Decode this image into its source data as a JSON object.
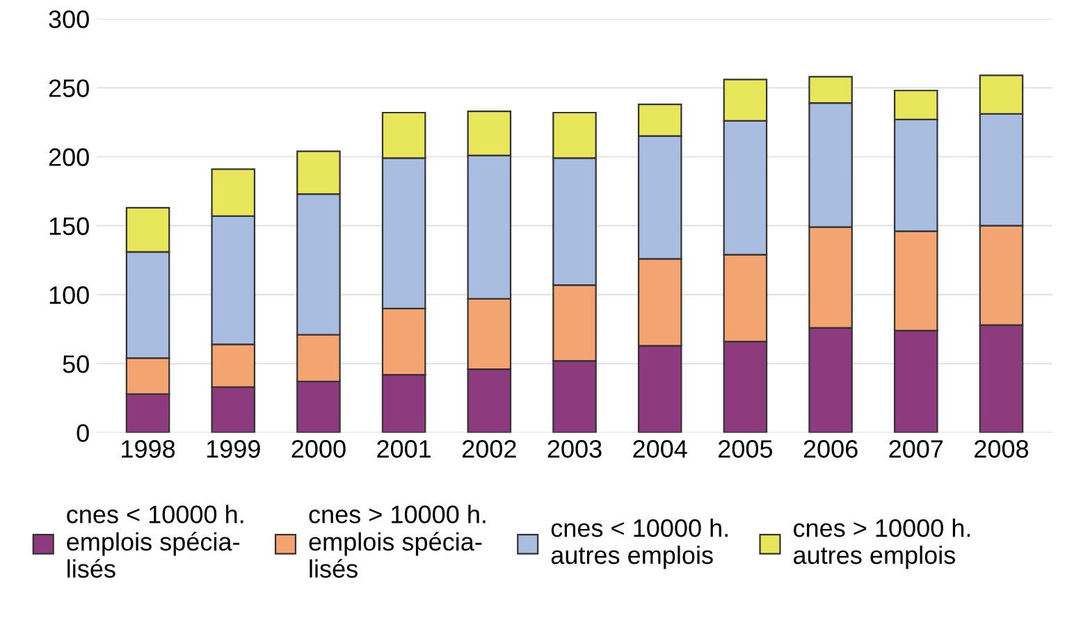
{
  "chart_data": {
    "type": "bar",
    "stacked": true,
    "categories": [
      "1998",
      "1999",
      "2000",
      "2001",
      "2002",
      "2003",
      "2004",
      "2005",
      "2006",
      "2007",
      "2008"
    ],
    "series": [
      {
        "name": "cnes < 10000 h.\nemplois spécia-\nlisés",
        "color": "#8e3a7e",
        "values": [
          28,
          33,
          37,
          42,
          46,
          52,
          63,
          66,
          76,
          74,
          78
        ]
      },
      {
        "name": "cnes > 10000 h.\nemplois spécia-\nlisés",
        "color": "#f4a470",
        "values": [
          26,
          31,
          34,
          48,
          51,
          55,
          63,
          63,
          73,
          72,
          72
        ]
      },
      {
        "name": "cnes < 10000 h.\nautres emplois",
        "color": "#a9bde0",
        "values": [
          77,
          93,
          102,
          109,
          104,
          92,
          89,
          97,
          90,
          81,
          81
        ]
      },
      {
        "name": "cnes > 10000 h.\nautres emplois",
        "color": "#e8e65a",
        "values": [
          32,
          34,
          31,
          33,
          32,
          33,
          23,
          30,
          19,
          21,
          28
        ]
      }
    ],
    "ylim": [
      0,
      300
    ],
    "yticks": [
      0,
      50,
      100,
      150,
      200,
      250,
      300
    ],
    "grid": "y",
    "legend": "bottom"
  }
}
